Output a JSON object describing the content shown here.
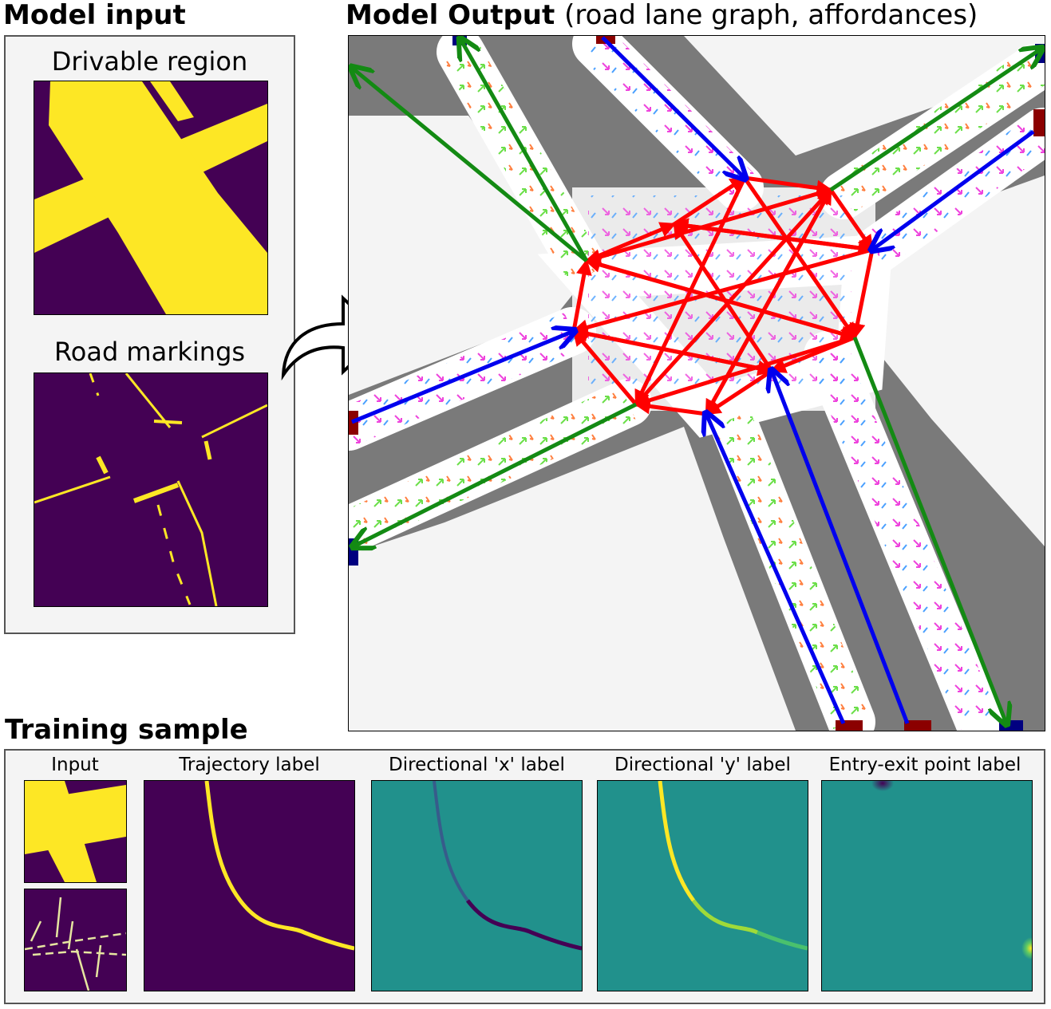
{
  "model_input": {
    "title": "Model input",
    "drivable_label": "Drivable region",
    "markings_label": "Road markings"
  },
  "model_output": {
    "title_bold": "Model Output",
    "title_rest": "(road lane graph, affordances)"
  },
  "training": {
    "title": "Training sample",
    "labels": {
      "input": "Input",
      "trajectory": "Trajectory label",
      "dir_x": "Directional 'x' label",
      "dir_y": "Directional 'y' label",
      "entry_exit": "Entry-exit point label"
    }
  },
  "colors": {
    "viridis_dark": "#440154",
    "viridis_yellow": "#fde725",
    "viridis_teal": "#21918c",
    "entry_lane": "#0000ee",
    "exit_lane": "#138a13",
    "intersection_edge": "#ff0000",
    "road_gray": "#7a7a7a"
  },
  "icons": {
    "arrow": "curved-right-arrow-icon"
  }
}
